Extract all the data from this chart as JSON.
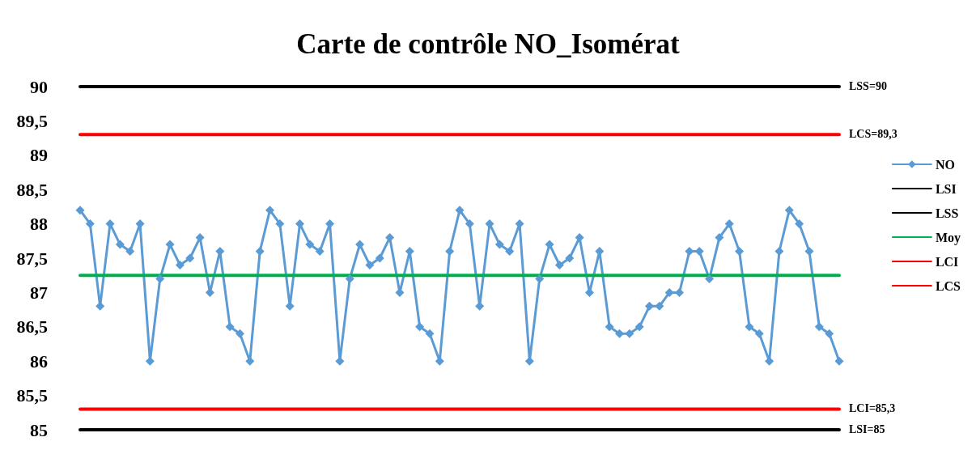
{
  "chart_data": {
    "type": "line",
    "title": "Carte de contrôle NO_Isomérat",
    "categories": [
      null,
      null,
      null,
      null,
      null,
      null,
      null,
      null,
      null,
      null,
      null,
      null,
      null,
      null,
      null,
      null,
      null,
      null,
      null,
      null,
      null,
      null,
      null,
      null,
      null,
      null,
      null,
      null,
      null,
      null,
      null,
      null,
      null,
      null,
      null,
      null,
      null,
      null,
      null,
      null,
      null,
      null,
      null,
      null,
      null,
      null,
      null,
      null,
      null,
      null,
      null,
      null,
      null,
      null,
      null,
      null,
      null,
      null,
      null,
      null,
      null,
      null,
      null,
      null,
      null,
      null,
      null,
      null,
      null,
      null,
      null,
      null,
      null,
      null,
      null,
      null,
      null
    ],
    "series": [
      {
        "name": "NO",
        "color": "#5b9bd5",
        "marker": "diamond",
        "values": [
          88.2,
          88.0,
          86.8,
          88.0,
          87.7,
          87.6,
          88.0,
          86.0,
          87.2,
          87.7,
          87.4,
          87.5,
          87.8,
          87.0,
          87.6,
          86.5,
          86.4,
          86.0,
          87.6,
          88.2,
          88.0,
          86.8,
          88.0,
          87.7,
          87.6,
          88.0,
          86.0,
          87.2,
          87.7,
          87.4,
          87.5,
          87.8,
          87.0,
          87.6,
          86.5,
          86.4,
          86.0,
          87.6,
          88.2,
          88.0,
          86.8,
          88.0,
          87.7,
          87.6,
          88.0,
          86.0,
          87.2,
          87.7,
          87.4,
          87.5,
          87.8,
          87.0,
          87.6,
          86.5,
          86.4,
          86.4,
          86.5,
          86.8,
          86.8,
          87.0,
          87.0,
          87.6,
          87.6,
          87.2,
          87.8,
          88.0,
          87.6,
          86.5,
          86.4,
          86.0,
          87.6,
          88.2,
          88.0,
          87.6,
          86.5,
          86.4,
          86.0
        ]
      },
      {
        "name": "LSI",
        "color": "#000000",
        "marker": "none",
        "values": [
          85,
          85,
          85,
          85,
          85,
          85,
          85,
          85,
          85,
          85,
          85,
          85,
          85,
          85,
          85,
          85,
          85,
          85,
          85,
          85,
          85,
          85,
          85,
          85,
          85,
          85,
          85,
          85,
          85,
          85,
          85,
          85,
          85,
          85,
          85,
          85,
          85,
          85,
          85,
          85,
          85,
          85,
          85,
          85,
          85,
          85,
          85,
          85,
          85,
          85,
          85,
          85,
          85,
          85,
          85,
          85,
          85,
          85,
          85,
          85,
          85,
          85,
          85,
          85,
          85,
          85,
          85,
          85,
          85,
          85,
          85,
          85,
          85,
          85,
          85,
          85,
          85
        ]
      },
      {
        "name": "LSS",
        "color": "#000000",
        "marker": "none",
        "values": [
          90,
          90,
          90,
          90,
          90,
          90,
          90,
          90,
          90,
          90,
          90,
          90,
          90,
          90,
          90,
          90,
          90,
          90,
          90,
          90,
          90,
          90,
          90,
          90,
          90,
          90,
          90,
          90,
          90,
          90,
          90,
          90,
          90,
          90,
          90,
          90,
          90,
          90,
          90,
          90,
          90,
          90,
          90,
          90,
          90,
          90,
          90,
          90,
          90,
          90,
          90,
          90,
          90,
          90,
          90,
          90,
          90,
          90,
          90,
          90,
          90,
          90,
          90,
          90,
          90,
          90,
          90,
          90,
          90,
          90,
          90,
          90,
          90,
          90,
          90,
          90,
          90
        ]
      },
      {
        "name": "Moy",
        "color": "#00b050",
        "marker": "none",
        "values": [
          87.25,
          87.25,
          87.25,
          87.25,
          87.25,
          87.25,
          87.25,
          87.25,
          87.25,
          87.25,
          87.25,
          87.25,
          87.25,
          87.25,
          87.25,
          87.25,
          87.25,
          87.25,
          87.25,
          87.25,
          87.25,
          87.25,
          87.25,
          87.25,
          87.25,
          87.25,
          87.25,
          87.25,
          87.25,
          87.25,
          87.25,
          87.25,
          87.25,
          87.25,
          87.25,
          87.25,
          87.25,
          87.25,
          87.25,
          87.25,
          87.25,
          87.25,
          87.25,
          87.25,
          87.25,
          87.25,
          87.25,
          87.25,
          87.25,
          87.25,
          87.25,
          87.25,
          87.25,
          87.25,
          87.25,
          87.25,
          87.25,
          87.25,
          87.25,
          87.25,
          87.25,
          87.25,
          87.25,
          87.25,
          87.25,
          87.25,
          87.25,
          87.25,
          87.25,
          87.25,
          87.25,
          87.25,
          87.25,
          87.25,
          87.25,
          87.25,
          87.25
        ]
      },
      {
        "name": "LCI",
        "color": "#ff0000",
        "marker": "none",
        "values": [
          85.3,
          85.3,
          85.3,
          85.3,
          85.3,
          85.3,
          85.3,
          85.3,
          85.3,
          85.3,
          85.3,
          85.3,
          85.3,
          85.3,
          85.3,
          85.3,
          85.3,
          85.3,
          85.3,
          85.3,
          85.3,
          85.3,
          85.3,
          85.3,
          85.3,
          85.3,
          85.3,
          85.3,
          85.3,
          85.3,
          85.3,
          85.3,
          85.3,
          85.3,
          85.3,
          85.3,
          85.3,
          85.3,
          85.3,
          85.3,
          85.3,
          85.3,
          85.3,
          85.3,
          85.3,
          85.3,
          85.3,
          85.3,
          85.3,
          85.3,
          85.3,
          85.3,
          85.3,
          85.3,
          85.3,
          85.3,
          85.3,
          85.3,
          85.3,
          85.3,
          85.3,
          85.3,
          85.3,
          85.3,
          85.3,
          85.3,
          85.3,
          85.3,
          85.3,
          85.3,
          85.3,
          85.3,
          85.3,
          85.3,
          85.3,
          85.3,
          85.3
        ]
      },
      {
        "name": "LCS",
        "color": "#ff0000",
        "marker": "none",
        "values": [
          89.3,
          89.3,
          89.3,
          89.3,
          89.3,
          89.3,
          89.3,
          89.3,
          89.3,
          89.3,
          89.3,
          89.3,
          89.3,
          89.3,
          89.3,
          89.3,
          89.3,
          89.3,
          89.3,
          89.3,
          89.3,
          89.3,
          89.3,
          89.3,
          89.3,
          89.3,
          89.3,
          89.3,
          89.3,
          89.3,
          89.3,
          89.3,
          89.3,
          89.3,
          89.3,
          89.3,
          89.3,
          89.3,
          89.3,
          89.3,
          89.3,
          89.3,
          89.3,
          89.3,
          89.3,
          89.3,
          89.3,
          89.3,
          89.3,
          89.3,
          89.3,
          89.3,
          89.3,
          89.3,
          89.3,
          89.3,
          89.3,
          89.3,
          89.3,
          89.3,
          89.3,
          89.3,
          89.3,
          89.3,
          89.3,
          89.3,
          89.3,
          89.3,
          89.3,
          89.3,
          89.3,
          89.3,
          89.3,
          89.3,
          89.3,
          89.3,
          89.3
        ]
      }
    ],
    "ylim": [
      85,
      90
    ],
    "yticks": [
      85,
      {
        "value": 85.5,
        "label": "85,5"
      },
      86,
      {
        "value": 86.5,
        "label": "86,5"
      },
      87,
      {
        "value": 87.5,
        "label": "87,5"
      },
      88,
      {
        "value": 88.5,
        "label": "88,5"
      },
      89,
      {
        "value": 89.5,
        "label": "89,5"
      },
      90
    ],
    "annotations": [
      "LSS=90",
      "LCS=89,3",
      "LCI=85,3",
      "LSI=85"
    ],
    "tick_labels": "y",
    "grid": false,
    "legend": "right",
    "line_style": "solid"
  }
}
